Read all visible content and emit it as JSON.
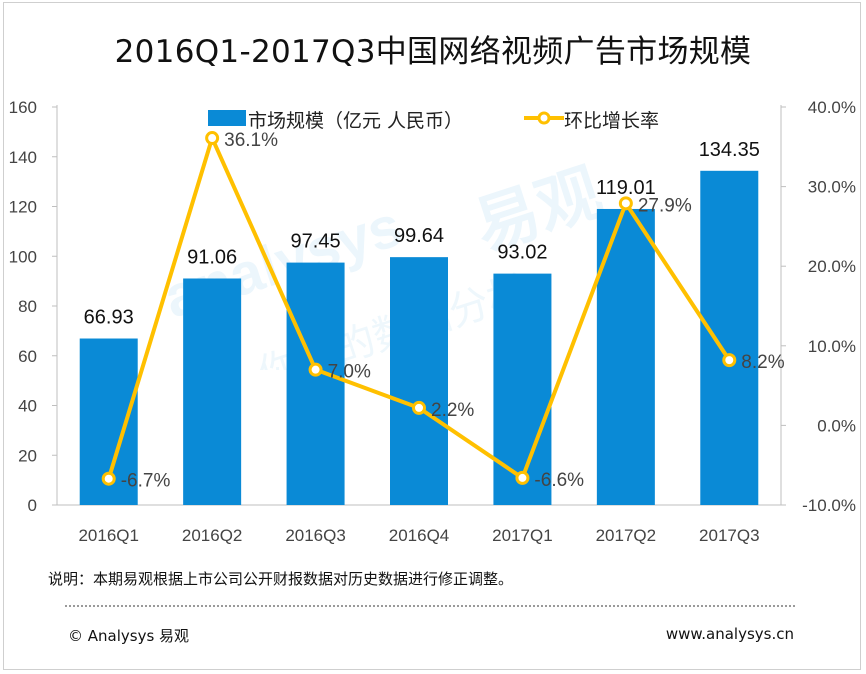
{
  "title": "2016Q1-2017Q3中国网络视频广告市场规模",
  "legend": {
    "bar_label": "市场规模（亿元 人民币）",
    "line_label": "环比增长率"
  },
  "note": "说明：本期易观根据上市公司公开财报数据对历史数据进行修正调整。",
  "footer": {
    "copyright": "© Analysys 易观",
    "website": "www.analysys.cn"
  },
  "watermark": {
    "brand_latin": "analysys",
    "brand_cn": "易观",
    "tagline": "你要的数据分析"
  },
  "colors": {
    "bar": "#0a8ad6",
    "line": "#ffc000",
    "marker_fill": "#ffffff"
  },
  "chart_data": {
    "type": "bar+line",
    "categories": [
      "2016Q1",
      "2016Q2",
      "2016Q3",
      "2016Q4",
      "2017Q1",
      "2017Q2",
      "2017Q3"
    ],
    "series": [
      {
        "name": "市场规模（亿元 人民币）",
        "type": "bar",
        "axis": "left",
        "values": [
          66.93,
          91.06,
          97.45,
          99.64,
          93.02,
          119.01,
          134.35
        ],
        "labels": [
          "66.93",
          "91.06",
          "97.45",
          "99.64",
          "93.02",
          "119.01",
          "134.35"
        ]
      },
      {
        "name": "环比增长率",
        "type": "line",
        "axis": "right",
        "values": [
          -6.7,
          36.1,
          7.0,
          2.2,
          -6.6,
          27.9,
          8.2
        ],
        "labels": [
          "-6.7%",
          "36.1%",
          "7.0%",
          "2.2%",
          "-6.6%",
          "27.9%",
          "8.2%"
        ]
      }
    ],
    "y_left": {
      "min": 0,
      "max": 160,
      "ticks": [
        "0",
        "20",
        "40",
        "60",
        "80",
        "100",
        "120",
        "140",
        "160"
      ]
    },
    "y_right": {
      "min": -10,
      "max": 40,
      "ticks": [
        "-10.0%",
        "0.0%",
        "10.0%",
        "20.0%",
        "30.0%",
        "40.0%"
      ]
    },
    "grid": false,
    "legend_position": "top"
  }
}
